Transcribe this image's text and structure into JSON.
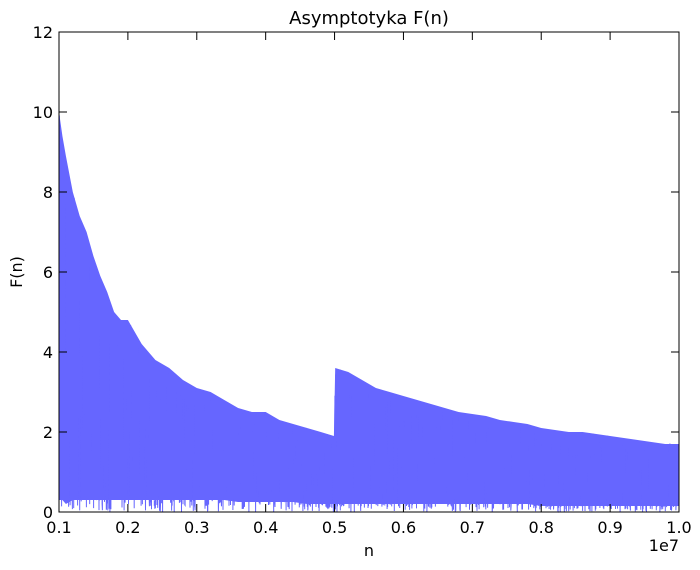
{
  "chart_data": {
    "type": "area",
    "title": "Asymptotyka F(n)",
    "xlabel": "n",
    "ylabel": "F(n)",
    "x_offset_label": "1e7",
    "xlim": [
      0.1,
      1.0
    ],
    "ylim": [
      0,
      12
    ],
    "x_ticks": [
      0.1,
      0.2,
      0.3,
      0.4,
      0.5,
      0.6,
      0.7,
      0.8,
      0.9,
      1.0
    ],
    "x_tick_labels": [
      "0.1",
      "0.2",
      "0.3",
      "0.4",
      "0.5",
      "0.6",
      "0.7",
      "0.8",
      "0.9",
      "1.0"
    ],
    "y_ticks": [
      0,
      2,
      4,
      6,
      8,
      10,
      12
    ],
    "y_tick_labels": [
      "0",
      "2",
      "4",
      "6",
      "8",
      "10",
      "12"
    ],
    "grid": false,
    "series": [
      {
        "color": "#6666ff",
        "x": [
          0.1,
          0.105,
          0.11,
          0.12,
          0.13,
          0.14,
          0.15,
          0.16,
          0.17,
          0.18,
          0.19,
          0.2,
          0.22,
          0.24,
          0.26,
          0.28,
          0.3,
          0.32,
          0.34,
          0.36,
          0.38,
          0.4,
          0.42,
          0.44,
          0.46,
          0.48,
          0.499,
          0.501,
          0.52,
          0.54,
          0.56,
          0.58,
          0.6,
          0.62,
          0.64,
          0.66,
          0.68,
          0.7,
          0.72,
          0.74,
          0.76,
          0.78,
          0.8,
          0.82,
          0.84,
          0.86,
          0.88,
          0.9,
          0.92,
          0.94,
          0.96,
          0.98,
          1.0
        ],
        "upper": [
          10.0,
          9.4,
          8.9,
          8.0,
          7.4,
          7.0,
          6.4,
          5.9,
          5.5,
          5.0,
          4.8,
          4.8,
          4.2,
          3.8,
          3.6,
          3.3,
          3.1,
          3.0,
          2.8,
          2.6,
          2.5,
          2.5,
          2.3,
          2.2,
          2.1,
          2.0,
          1.9,
          3.6,
          3.5,
          3.3,
          3.1,
          3.0,
          2.9,
          2.8,
          2.7,
          2.6,
          2.5,
          2.45,
          2.4,
          2.3,
          2.25,
          2.2,
          2.1,
          2.05,
          2.0,
          2.0,
          1.95,
          1.9,
          1.85,
          1.8,
          1.75,
          1.7,
          1.7
        ],
        "lower": [
          0.3,
          0.3,
          0.2,
          0.3,
          0.3,
          0.3,
          0.3,
          0.3,
          0.3,
          0.3,
          0.3,
          0.3,
          0.3,
          0.3,
          0.3,
          0.3,
          0.3,
          0.3,
          0.3,
          0.25,
          0.25,
          0.25,
          0.25,
          0.25,
          0.2,
          0.2,
          0.2,
          0.2,
          0.2,
          0.2,
          0.2,
          0.2,
          0.2,
          0.2,
          0.2,
          0.2,
          0.2,
          0.2,
          0.2,
          0.2,
          0.2,
          0.2,
          0.15,
          0.15,
          0.15,
          0.15,
          0.15,
          0.15,
          0.15,
          0.15,
          0.15,
          0.15,
          0.15
        ]
      }
    ]
  }
}
